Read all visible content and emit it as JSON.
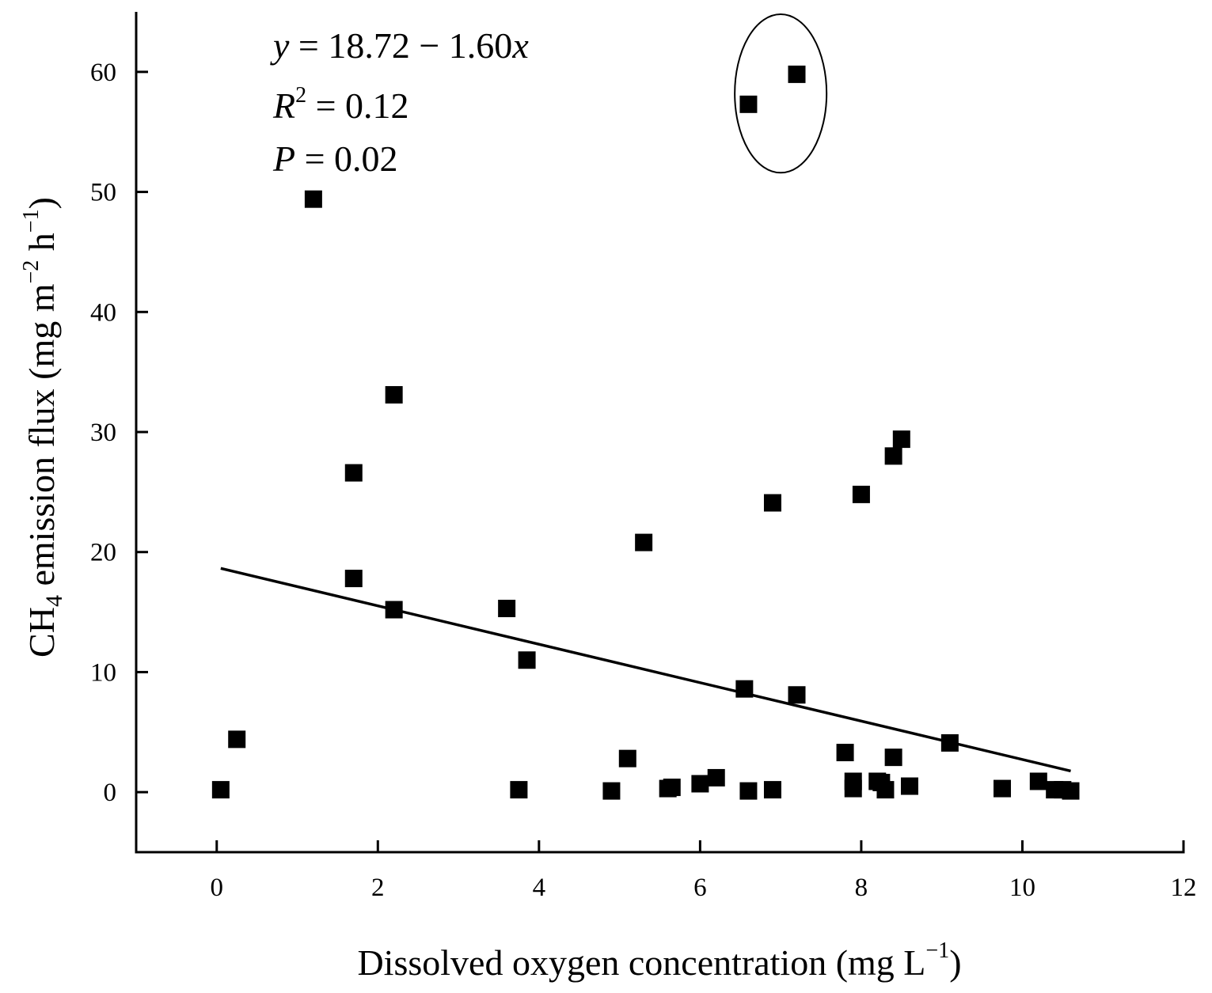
{
  "chart_data": {
    "type": "scatter",
    "title": "",
    "xlabel": {
      "main": "Dissolved oxygen concentration (mg L",
      "sup": "−1",
      "close": ")"
    },
    "ylabel": {
      "pre": "CH",
      "sub": "4",
      "mid": " emission flux (mg m",
      "sup1": "−2",
      "mid2": " h",
      "sup2": "−1",
      "close": ")"
    },
    "xlim": [
      -1,
      12
    ],
    "ylim": [
      -5,
      65
    ],
    "xticks": [
      0,
      2,
      4,
      6,
      8,
      10,
      12
    ],
    "yticks": [
      0,
      10,
      20,
      30,
      40,
      50,
      60
    ],
    "annotation": {
      "eq_y": "y",
      "eq_rest": " = 18.72 − 1.60",
      "eq_x": "x",
      "r_letter": "R",
      "r_sup": "2",
      "r_rest": " = 0.12",
      "p_letter": "P",
      "p_rest": " = 0.02"
    },
    "regression": {
      "intercept": 18.72,
      "slope": -1.6,
      "x_range": [
        0.05,
        10.6
      ]
    },
    "highlight_ellipse": {
      "cx": 7.0,
      "cy": 58.2,
      "rx": 0.57,
      "ry": 6.6
    },
    "series": [
      {
        "name": "CH4 emission flux",
        "marker": "square",
        "color": "#000000",
        "x": [
          0.05,
          0.25,
          1.2,
          1.7,
          1.7,
          2.2,
          2.2,
          3.6,
          3.75,
          3.85,
          4.9,
          5.1,
          5.3,
          5.6,
          5.65,
          6.0,
          6.2,
          6.55,
          6.6,
          6.6,
          6.9,
          6.9,
          7.2,
          7.2,
          7.8,
          7.9,
          7.9,
          8.0,
          8.2,
          8.25,
          8.3,
          8.4,
          8.4,
          8.5,
          8.6,
          9.1,
          9.75,
          10.2,
          10.4,
          10.5,
          10.6
        ],
        "y": [
          0.2,
          4.4,
          49.4,
          26.6,
          17.8,
          33.1,
          15.2,
          15.3,
          0.2,
          11.0,
          0.1,
          2.8,
          20.8,
          0.3,
          0.4,
          0.7,
          1.2,
          8.6,
          0.1,
          57.3,
          24.1,
          0.2,
          8.1,
          59.8,
          3.3,
          0.9,
          0.3,
          24.8,
          0.9,
          0.8,
          0.2,
          2.9,
          28.0,
          29.4,
          0.5,
          4.1,
          0.3,
          0.9,
          0.2,
          0.2,
          0.1
        ]
      }
    ]
  }
}
